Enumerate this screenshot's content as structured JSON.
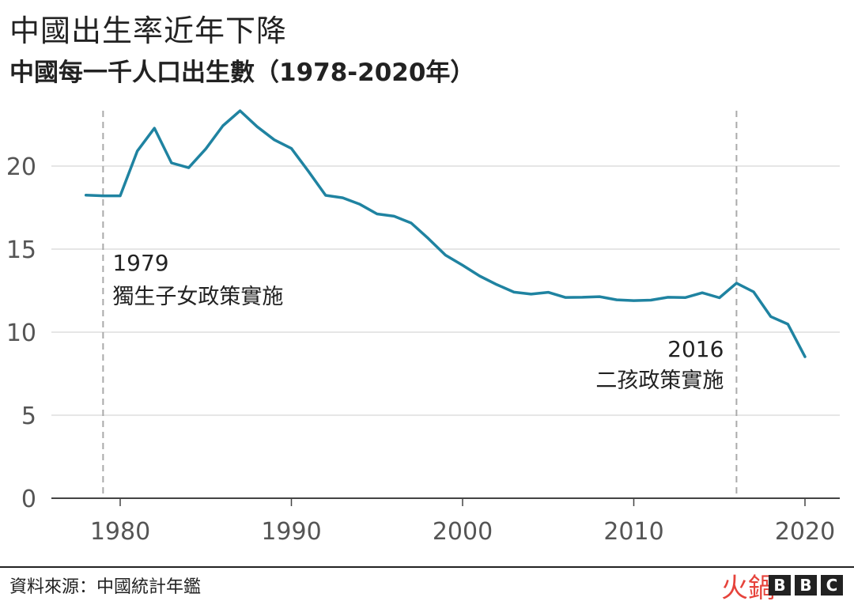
{
  "title": "中國出生率近年下降",
  "subtitle": "中國每一千人口出生數（1978-2020年）",
  "source": "資料來源：中國統計年鑑",
  "watermark": "火鍋",
  "logo": [
    "B",
    "B",
    "C"
  ],
  "colors": {
    "line": "#1f83a1",
    "grid": "#dddddd",
    "annotation": "#aaaaaa",
    "text": "#222222"
  },
  "chart_data": {
    "type": "line",
    "title": "中國出生率近年下降",
    "subtitle": "中國每一千人口出生數（1978-2020年）",
    "xlabel": "",
    "ylabel": "",
    "xlim": [
      1978,
      2020
    ],
    "ylim": [
      0,
      23.5
    ],
    "xticks": [
      1980,
      1990,
      2000,
      2010,
      2020
    ],
    "yticks": [
      0,
      5,
      10,
      15,
      20
    ],
    "grid": true,
    "series": [
      {
        "x": [
          1978,
          1979,
          1980,
          1981,
          1982,
          1983,
          1984,
          1985,
          1986,
          1987,
          1988,
          1989,
          1990,
          1991,
          1992,
          1993,
          1994,
          1995,
          1996,
          1997,
          1998,
          1999,
          2000,
          2001,
          2002,
          2003,
          2004,
          2005,
          2006,
          2007,
          2008,
          2009,
          2010,
          2011,
          2012,
          2013,
          2014,
          2015,
          2016,
          2017,
          2018,
          2019,
          2020
        ],
        "values": [
          18.25,
          18.21,
          18.21,
          20.91,
          22.28,
          20.19,
          19.9,
          21.04,
          22.43,
          23.33,
          22.37,
          21.58,
          21.06,
          19.68,
          18.24,
          18.09,
          17.7,
          17.12,
          16.98,
          16.57,
          15.64,
          14.64,
          14.03,
          13.38,
          12.86,
          12.41,
          12.29,
          12.4,
          12.09,
          12.1,
          12.14,
          11.95,
          11.9,
          11.93,
          12.1,
          12.08,
          12.37,
          12.07,
          12.95,
          12.43,
          10.94,
          10.48,
          8.52
        ]
      }
    ],
    "annotations": [
      {
        "x": 1979,
        "year": "1979",
        "label": "獨生子女政策實施"
      },
      {
        "x": 2016,
        "year": "2016",
        "label": "二孩政策實施"
      }
    ]
  }
}
